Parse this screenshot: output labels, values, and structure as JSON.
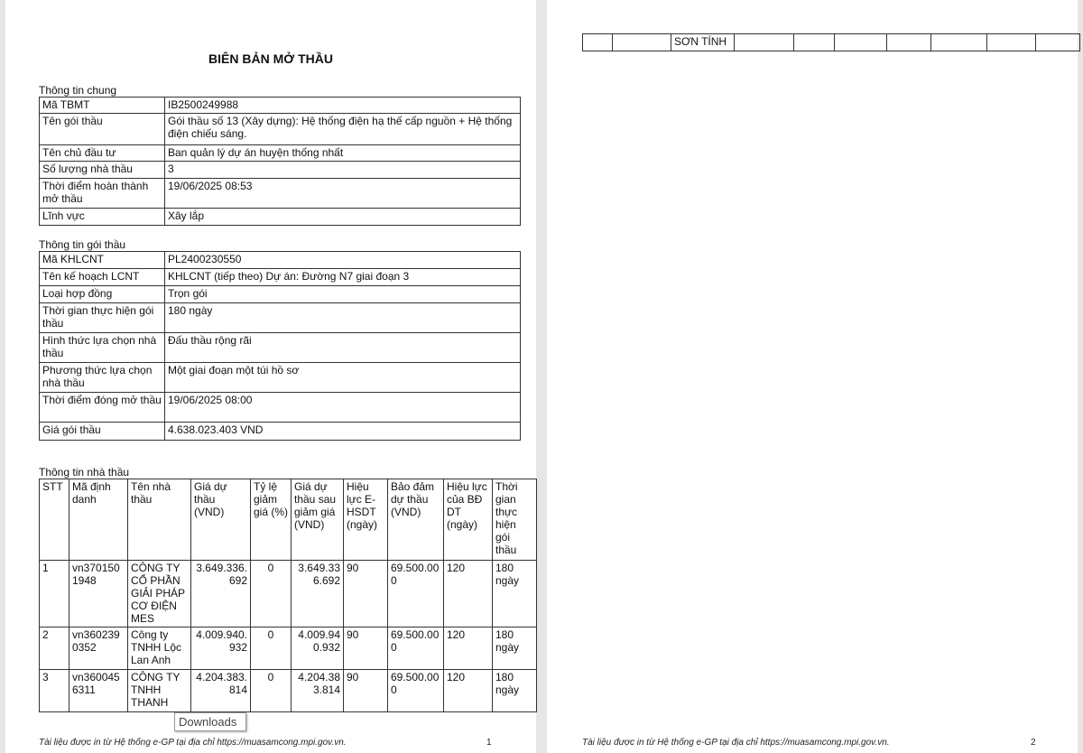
{
  "title": "BIÊN BẢN MỞ THẦU",
  "general": {
    "heading": "Thông tin chung",
    "rows": [
      [
        "Mã TBMT",
        "IB2500249988"
      ],
      [
        "Tên gói thầu",
        "Gói thầu số 13 (Xây dựng): Hệ thống điện hạ thế cấp nguồn + Hệ thống điện chiếu sáng."
      ],
      [
        "Tên chủ đầu tư",
        "Ban quản lý dự án huyện thống nhất"
      ],
      [
        "Số lượng nhà thầu",
        "3"
      ],
      [
        "Thời điểm hoàn thành mở thầu",
        "19/06/2025 08:53"
      ],
      [
        "Lĩnh vực",
        "Xây lắp"
      ]
    ]
  },
  "package": {
    "heading": "Thông tin gói thầu",
    "rows": [
      [
        "Mã KHLCNT",
        "PL2400230550"
      ],
      [
        "Tên kế hoạch LCNT",
        "KHLCNT (tiếp theo) Dự án: Đường N7 giai đoạn 3"
      ],
      [
        "Loại hợp đồng",
        "Trọn gói"
      ],
      [
        "Thời gian thực hiện gói thầu",
        "180 ngày"
      ],
      [
        "Hình thức lựa chọn nhà thầu",
        "Đấu thầu rộng rãi"
      ],
      [
        "Phương thức lựa chọn nhà thầu",
        "Một giai đoạn một túi hồ sơ"
      ],
      [
        "Thời điểm đóng mở thầu",
        "19/06/2025 08:00"
      ],
      [
        "Giá gói thầu",
        "4.638.023.403 VND"
      ]
    ]
  },
  "bidders": {
    "heading": "Thông tin nhà thầu",
    "columns": [
      "STT",
      "Mã định danh",
      "Tên nhà thầu",
      "Giá dự thầu (VND)",
      "Tỷ lệ giảm giá (%)",
      "Giá dự thầu sau giảm giá (VND)",
      "Hiệu lực E-HSDT (ngày)",
      "Bảo đảm dự thầu (VND)",
      "Hiệu lực của BĐ DT (ngày)",
      "Thời gian thực hiện gói thầu"
    ],
    "rows": [
      [
        "1",
        "vn3701501948",
        "CÔNG TY CỔ PHẦN GIẢI PHÁP CƠ ĐIỆN MES",
        "3.649.336.692",
        "0",
        "3.649.336.692",
        "90",
        "69.500.000",
        "120",
        "180 ngày"
      ],
      [
        "2",
        "vn3602390352",
        "Công ty TNHH Lộc Lan Anh",
        "4.009.940.932",
        "0",
        "4.009.940.932",
        "90",
        "69.500.000",
        "120",
        "180 ngày"
      ],
      [
        "3",
        "vn3600456311",
        "CÔNG TY TNHH THANH",
        "4.204.383.814",
        "0",
        "4.204.383.814",
        "90",
        "69.500.000",
        "120",
        "180 ngày"
      ]
    ],
    "continued_row": [
      "",
      "",
      "SƠN TÍNH",
      "",
      "",
      "",
      "",
      "",
      "",
      ""
    ]
  },
  "footer": {
    "text": "Tài liệu được in từ Hệ thống e-GP tại địa chỉ https://muasamcong.mpi.gov.vn.",
    "page1": "1",
    "page2": "2"
  },
  "tooltip": "Downloads"
}
